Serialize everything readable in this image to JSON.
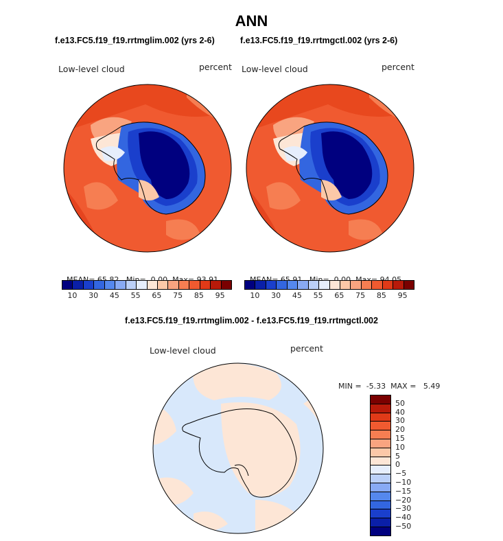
{
  "title": "ANN",
  "panels": [
    {
      "case": "f.e13.FC5.f19_f19.rrtmglim.002 (yrs 2-6)",
      "variable": "Low-level cloud",
      "units": "percent",
      "stats": {
        "mean_label": "MEAN=",
        "mean": "65.82",
        "min_label": "Min=",
        "min": "0.00",
        "max_label": "Max=",
        "max": "93.91"
      }
    },
    {
      "case": "f.e13.FC5.f19_f19.rrtmgctl.002 (yrs 2-6)",
      "variable": "Low-level cloud",
      "units": "percent",
      "stats": {
        "mean_label": "MEAN=",
        "mean": "65.91",
        "min_label": "Min=",
        "min": "0.00",
        "max_label": "Max=",
        "max": "94.05"
      }
    }
  ],
  "colorbar": {
    "colors": [
      "#00007f",
      "#0a1fa8",
      "#1a3fcc",
      "#3366e0",
      "#5588ee",
      "#88aaf4",
      "#bbd0f8",
      "#e6eefc",
      "#fde6d6",
      "#fcc8a8",
      "#f9a480",
      "#f67e52",
      "#f05a30",
      "#e03a18",
      "#b81a0a",
      "#7a0000"
    ],
    "ticks": [
      "10",
      "30",
      "45",
      "55",
      "65",
      "75",
      "85",
      "95"
    ]
  },
  "difference": {
    "title": "f.e13.FC5.f19_f19.rrtmglim.002 - f.e13.FC5.f19_f19.rrtmgctl.002",
    "variable": "Low-level cloud",
    "units": "percent",
    "stats": {
      "min_label": "MIN =",
      "min": "-5.33",
      "max_label": "MAX =",
      "max": "5.49"
    },
    "colorbar": {
      "colors": [
        "#7a0000",
        "#b81a0a",
        "#e03a18",
        "#f05a30",
        "#f67e52",
        "#f9a480",
        "#fcc8a8",
        "#fde6d6",
        "#e6eefc",
        "#bbd0f8",
        "#88aaf4",
        "#5588ee",
        "#3366e0",
        "#1a3fcc",
        "#0a1fa8",
        "#00007f"
      ],
      "ticks": [
        "50",
        "40",
        "30",
        "20",
        "15",
        "10",
        "5",
        "0",
        "−5",
        "−10",
        "−15",
        "−20",
        "−30",
        "−40",
        "−50"
      ]
    }
  }
}
